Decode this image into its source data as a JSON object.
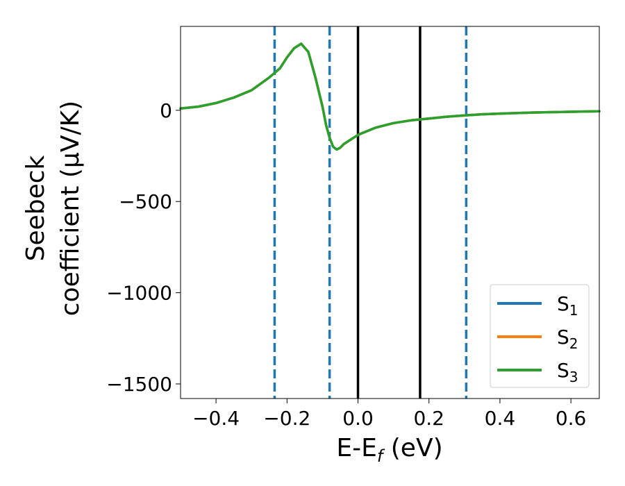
{
  "chart_data": {
    "type": "line",
    "xlabel": "E-E",
    "xlabel_sub": "f",
    "xlabel_unit": " (eV)",
    "ylabel_line1": "Seebeck",
    "ylabel_line2": "coefficient  (μV/K)",
    "xlim": [
      -0.5,
      0.68
    ],
    "ylim": [
      -1580,
      460
    ],
    "x_ticks": [
      -0.4,
      -0.2,
      0.0,
      0.2,
      0.4,
      0.6
    ],
    "x_tick_labels": [
      "−0.4",
      "−0.2",
      "0.0",
      "0.2",
      "0.4",
      "0.6"
    ],
    "y_ticks": [
      0,
      -500,
      -1000,
      -1500
    ],
    "y_tick_labels": [
      "0",
      "−500",
      "−1000",
      "−1500"
    ],
    "grid": false,
    "legend_position": "lower-right",
    "series": [
      {
        "name": "S",
        "name_sub": "1",
        "color": "#1f77b4",
        "x": [
          -0.5,
          -0.45,
          -0.4,
          -0.35,
          -0.3,
          -0.25,
          -0.22,
          -0.2,
          -0.18,
          -0.16,
          -0.14,
          -0.12,
          -0.1,
          -0.09,
          -0.08,
          -0.07,
          -0.06,
          -0.05,
          -0.04,
          -0.02,
          0.0,
          0.05,
          0.1,
          0.15,
          0.2,
          0.25,
          0.3,
          0.35,
          0.4,
          0.5,
          0.6,
          0.68
        ],
        "y": [
          10,
          20,
          40,
          70,
          110,
          180,
          230,
          290,
          340,
          365,
          320,
          180,
          20,
          -80,
          -150,
          -200,
          -215,
          -205,
          -185,
          -160,
          -135,
          -95,
          -70,
          -55,
          -45,
          -35,
          -28,
          -22,
          -18,
          -12,
          -8,
          -5
        ]
      },
      {
        "name": "S",
        "name_sub": "2",
        "color": "#ff7f0e",
        "x": [
          -0.5,
          -0.45,
          -0.4,
          -0.35,
          -0.3,
          -0.25,
          -0.22,
          -0.2,
          -0.18,
          -0.16,
          -0.14,
          -0.12,
          -0.1,
          -0.09,
          -0.08,
          -0.07,
          -0.06,
          -0.05,
          -0.04,
          -0.02,
          0.0,
          0.05,
          0.1,
          0.15,
          0.2,
          0.25,
          0.3,
          0.35,
          0.4,
          0.5,
          0.6,
          0.68
        ],
        "y": [
          10,
          20,
          40,
          70,
          110,
          180,
          230,
          290,
          340,
          365,
          320,
          180,
          20,
          -80,
          -150,
          -200,
          -215,
          -205,
          -185,
          -160,
          -135,
          -95,
          -70,
          -55,
          -45,
          -35,
          -28,
          -22,
          -18,
          -12,
          -8,
          -5
        ]
      },
      {
        "name": "S",
        "name_sub": "3",
        "color": "#2ca02c",
        "x": [
          -0.5,
          -0.45,
          -0.4,
          -0.35,
          -0.3,
          -0.25,
          -0.22,
          -0.2,
          -0.18,
          -0.16,
          -0.14,
          -0.12,
          -0.1,
          -0.09,
          -0.08,
          -0.07,
          -0.06,
          -0.05,
          -0.04,
          -0.02,
          0.0,
          0.05,
          0.1,
          0.15,
          0.2,
          0.25,
          0.3,
          0.35,
          0.4,
          0.5,
          0.6,
          0.68
        ],
        "y": [
          10,
          20,
          40,
          70,
          110,
          180,
          230,
          290,
          340,
          365,
          320,
          180,
          20,
          -80,
          -150,
          -200,
          -215,
          -205,
          -185,
          -160,
          -135,
          -95,
          -70,
          -55,
          -45,
          -35,
          -28,
          -22,
          -18,
          -12,
          -8,
          -5
        ]
      }
    ],
    "vertical_lines": [
      {
        "x": -0.235,
        "color": "#1f77b4",
        "style": "dashed"
      },
      {
        "x": -0.08,
        "color": "#1f77b4",
        "style": "dashed"
      },
      {
        "x": 0.0,
        "color": "#000000",
        "style": "solid"
      },
      {
        "x": 0.175,
        "color": "#000000",
        "style": "solid"
      },
      {
        "x": 0.305,
        "color": "#1f77b4",
        "style": "dashed"
      }
    ]
  }
}
